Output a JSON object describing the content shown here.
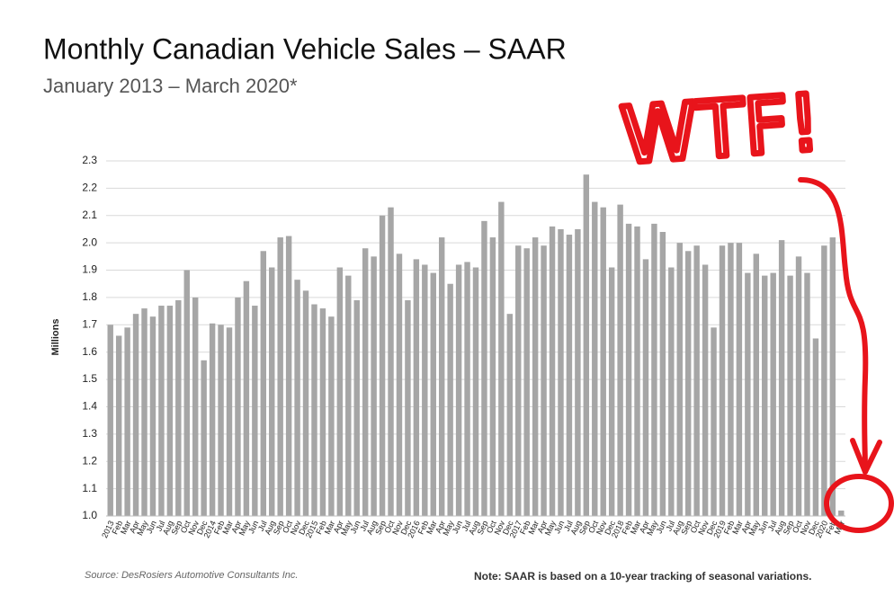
{
  "chart_data": {
    "type": "bar",
    "title": "Monthly Canadian Vehicle Sales – SAAR",
    "subtitle": "January 2013 – March 2020*",
    "ylabel": "Millions",
    "annotation": "WTF!",
    "source": "Source: DesRosiers Automotive Consultants Inc.",
    "note": "Note:  SAAR is based on a 10-year tracking of seasonal variations.",
    "color": "#a6a6a6",
    "grid": true,
    "categories": [
      "2013",
      "Feb",
      "Mar",
      "Apr",
      "May",
      "Jun",
      "Jul",
      "Aug",
      "Sep",
      "Oct",
      "Nov",
      "Dec",
      "2014",
      "Feb",
      "Mar",
      "Apr",
      "May",
      "Jun",
      "Jul",
      "Aug",
      "Sep",
      "Oct",
      "Nov",
      "Dec",
      "2015",
      "Feb",
      "Mar",
      "Apr",
      "May",
      "Jun",
      "Jul",
      "Aug",
      "Sep",
      "Oct",
      "Nov",
      "Dec",
      "2016",
      "Feb",
      "Mar",
      "Apr",
      "May",
      "Jun",
      "Jul",
      "Aug",
      "Sep",
      "Oct",
      "Nov",
      "Dec",
      "2017",
      "Feb",
      "Mar",
      "Apr",
      "May",
      "Jun",
      "Jul",
      "Aug",
      "Sep",
      "Oct",
      "Nov",
      "Dec",
      "2018",
      "Feb",
      "Mar",
      "Apr",
      "May",
      "Jun",
      "Jul",
      "Aug",
      "Sep",
      "Oct",
      "Nov",
      "Dec",
      "2019",
      "Feb",
      "Mar",
      "Apr",
      "May",
      "Jun",
      "Jul",
      "Aug",
      "Sep",
      "Oct",
      "Nov",
      "Dec",
      "2020",
      "Feb",
      "Mar"
    ],
    "values": [
      1.7,
      1.66,
      1.69,
      1.74,
      1.76,
      1.73,
      1.77,
      1.77,
      1.79,
      1.9,
      1.8,
      1.57,
      1.705,
      1.7,
      1.69,
      1.8,
      1.86,
      1.77,
      1.97,
      1.91,
      2.02,
      2.025,
      1.865,
      1.825,
      1.775,
      1.76,
      1.73,
      1.91,
      1.88,
      1.79,
      1.98,
      1.95,
      2.1,
      2.13,
      1.96,
      1.79,
      1.94,
      1.92,
      1.89,
      2.02,
      1.85,
      1.92,
      1.93,
      1.91,
      2.08,
      2.02,
      2.15,
      1.74,
      1.99,
      1.98,
      2.02,
      1.99,
      2.06,
      2.05,
      2.03,
      2.05,
      2.25,
      2.15,
      2.13,
      1.91,
      2.14,
      2.07,
      2.06,
      1.94,
      2.07,
      2.04,
      1.91,
      2.0,
      1.97,
      1.99,
      1.92,
      1.69,
      1.99,
      2.0,
      2.0,
      1.89,
      1.96,
      1.88,
      1.89,
      2.01,
      1.88,
      1.95,
      1.89,
      1.65,
      1.99,
      2.02,
      1.02
    ],
    "ylim": [
      1.0,
      2.3
    ],
    "yticks": [
      {
        "value": 1,
        "label": "1.0"
      },
      1.1,
      1.2,
      1.3,
      1.4,
      1.5,
      1.6,
      1.7,
      1.8,
      1.9,
      {
        "value": 2,
        "label": "2.0"
      },
      2.1,
      2.2,
      2.3
    ]
  }
}
